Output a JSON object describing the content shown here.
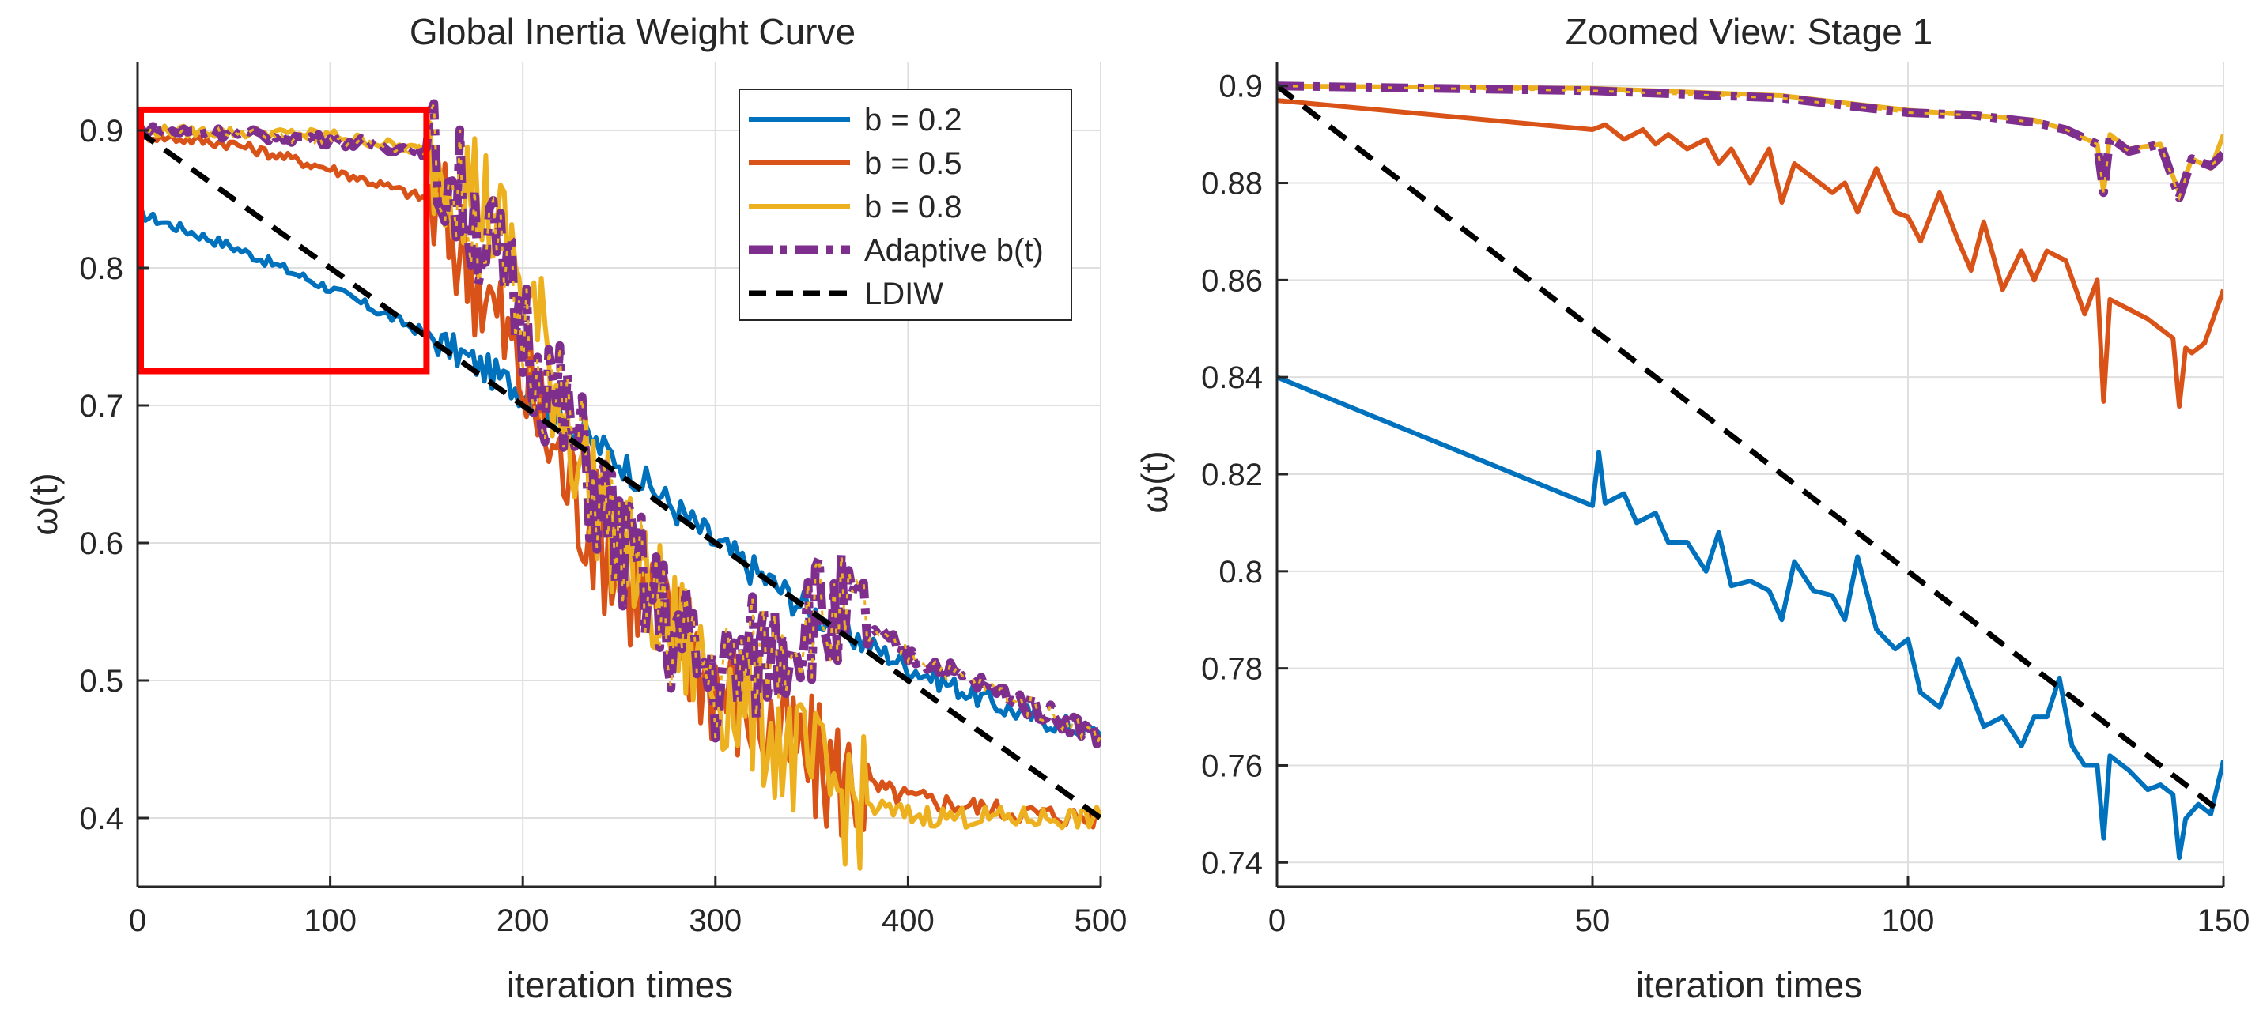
{
  "colors": {
    "b02": "#0072BD",
    "b05": "#D95319",
    "b08": "#EDB120",
    "adaptive": "#7E2F8E",
    "ldiw": "#000000",
    "highlight": "#FF0000",
    "grid": "#DFDFDF",
    "axis": "#262626"
  },
  "chart_data": [
    {
      "type": "line",
      "title": "Global Inertia Weight Curve",
      "xlabel": "iteration times",
      "ylabel": "ω(t)",
      "xlim": [
        0,
        500
      ],
      "ylim": [
        0.35,
        0.95
      ],
      "xticks": [
        0,
        100,
        200,
        300,
        400,
        500
      ],
      "xtick_labels": [
        "0",
        "100",
        "200",
        "300",
        "400",
        "500"
      ],
      "yticks": [
        0.4,
        0.5,
        0.6,
        0.7,
        0.8,
        0.9
      ],
      "ytick_labels": [
        "0.4",
        "0.5",
        "0.6",
        "0.7",
        "0.8",
        "0.9"
      ],
      "grid": true,
      "legend_position": "top-right",
      "highlight_box": {
        "x": [
          0,
          150
        ],
        "y": [
          0.725,
          0.915
        ]
      },
      "series": [
        {
          "name": "b = 0.2",
          "style": "solid",
          "color_key": "b02",
          "x": [
            0,
            50,
            100,
            150,
            200,
            250,
            300,
            350,
            400,
            450,
            500
          ],
          "y": [
            0.84,
            0.815,
            0.785,
            0.752,
            0.71,
            0.66,
            0.6,
            0.55,
            0.51,
            0.48,
            0.46
          ]
        },
        {
          "name": "b = 0.5",
          "style": "solid",
          "color_key": "b05",
          "x": [
            0,
            50,
            100,
            150,
            175,
            200,
            225,
            250,
            275,
            300,
            325,
            350,
            375,
            400,
            450,
            500
          ],
          "y": [
            0.897,
            0.89,
            0.872,
            0.85,
            0.8,
            0.72,
            0.64,
            0.58,
            0.54,
            0.5,
            0.47,
            0.44,
            0.425,
            0.415,
            0.405,
            0.4
          ]
        },
        {
          "name": "b = 0.8",
          "style": "solid",
          "color_key": "b08",
          "x": [
            0,
            100,
            150,
            175,
            200,
            225,
            250,
            275,
            300,
            325,
            350,
            375,
            400,
            450,
            500
          ],
          "y": [
            0.9,
            0.897,
            0.885,
            0.86,
            0.79,
            0.68,
            0.6,
            0.54,
            0.5,
            0.47,
            0.43,
            0.41,
            0.402,
            0.4,
            0.4
          ]
        },
        {
          "name": "Adaptive b(t)",
          "style": "dashdot",
          "color_key": "adaptive",
          "x": [
            0,
            50,
            100,
            150,
            175,
            200,
            225,
            250,
            275,
            300,
            325,
            350,
            375,
            400,
            450,
            500
          ],
          "y": [
            0.9,
            0.898,
            0.893,
            0.885,
            0.84,
            0.76,
            0.68,
            0.6,
            0.54,
            0.5,
            0.52,
            0.55,
            0.54,
            0.52,
            0.49,
            0.46
          ]
        },
        {
          "name": "LDIW",
          "style": "dashed",
          "color_key": "ldiw",
          "x": [
            0,
            500
          ],
          "y": [
            0.9,
            0.4
          ]
        }
      ]
    },
    {
      "type": "line",
      "title": "Zoomed View: Stage 1",
      "xlabel": "iteration times",
      "ylabel": "ω(t)",
      "xlim": [
        0,
        150
      ],
      "ylim": [
        0.735,
        0.905
      ],
      "xticks": [
        0,
        50,
        100,
        150
      ],
      "xtick_labels": [
        "0",
        "50",
        "100",
        "150"
      ],
      "yticks": [
        0.74,
        0.76,
        0.78,
        0.8,
        0.82,
        0.84,
        0.86,
        0.88,
        0.9
      ],
      "ytick_labels": [
        "0.74",
        "0.76",
        "0.78",
        "0.8",
        "0.82",
        "0.84",
        "0.86",
        "0.88",
        "0.9"
      ],
      "grid": true,
      "series": [
        {
          "name": "b = 0.2",
          "style": "solid",
          "color_key": "b02",
          "x": [
            0,
            50,
            51,
            52,
            55,
            57,
            60,
            62,
            65,
            68,
            70,
            72,
            75,
            78,
            80,
            82,
            85,
            88,
            90,
            92,
            95,
            98,
            100,
            102,
            105,
            108,
            110,
            112,
            115,
            118,
            120,
            122,
            124,
            126,
            128,
            130,
            131,
            132,
            135,
            138,
            140,
            142,
            143,
            144,
            146,
            148,
            150
          ],
          "y": [
            0.84,
            0.8135,
            0.8245,
            0.814,
            0.816,
            0.81,
            0.812,
            0.806,
            0.806,
            0.8,
            0.808,
            0.797,
            0.798,
            0.796,
            0.79,
            0.802,
            0.796,
            0.795,
            0.79,
            0.803,
            0.788,
            0.784,
            0.786,
            0.775,
            0.772,
            0.782,
            0.775,
            0.768,
            0.77,
            0.764,
            0.77,
            0.77,
            0.778,
            0.764,
            0.76,
            0.76,
            0.745,
            0.762,
            0.759,
            0.755,
            0.756,
            0.754,
            0.741,
            0.749,
            0.752,
            0.75,
            0.761
          ]
        },
        {
          "name": "b = 0.5",
          "style": "solid",
          "color_key": "b05",
          "x": [
            0,
            50,
            52,
            55,
            58,
            60,
            62,
            65,
            68,
            70,
            72,
            75,
            78,
            80,
            82,
            85,
            88,
            90,
            92,
            95,
            98,
            100,
            102,
            105,
            108,
            110,
            112,
            115,
            118,
            120,
            122,
            125,
            128,
            130,
            131,
            132,
            135,
            138,
            140,
            142,
            143,
            144,
            145,
            147,
            150
          ],
          "y": [
            0.897,
            0.891,
            0.892,
            0.889,
            0.891,
            0.888,
            0.89,
            0.887,
            0.889,
            0.884,
            0.887,
            0.88,
            0.887,
            0.876,
            0.884,
            0.881,
            0.878,
            0.88,
            0.874,
            0.883,
            0.874,
            0.873,
            0.868,
            0.878,
            0.868,
            0.862,
            0.872,
            0.858,
            0.866,
            0.86,
            0.866,
            0.864,
            0.853,
            0.86,
            0.835,
            0.856,
            0.854,
            0.852,
            0.85,
            0.848,
            0.834,
            0.846,
            0.845,
            0.847,
            0.858
          ]
        },
        {
          "name": "b = 0.8",
          "style": "solid",
          "color_key": "b08",
          "x": [
            0,
            50,
            80,
            100,
            110,
            120,
            125,
            130,
            131,
            132,
            135,
            140,
            143,
            145,
            148,
            150
          ],
          "y": [
            0.9,
            0.8995,
            0.898,
            0.895,
            0.894,
            0.893,
            0.891,
            0.888,
            0.878,
            0.89,
            0.887,
            0.888,
            0.878,
            0.885,
            0.883,
            0.89
          ]
        },
        {
          "name": "Adaptive b(t)",
          "style": "dashdot",
          "color_key": "adaptive",
          "x": [
            0,
            50,
            80,
            100,
            110,
            120,
            125,
            130,
            131,
            132,
            135,
            140,
            143,
            145,
            148,
            150
          ],
          "y": [
            0.9,
            0.899,
            0.8975,
            0.8945,
            0.894,
            0.8925,
            0.891,
            0.888,
            0.878,
            0.8895,
            0.8865,
            0.888,
            0.877,
            0.885,
            0.8835,
            0.886
          ]
        },
        {
          "name": "LDIW",
          "style": "dashed",
          "color_key": "ldiw",
          "x": [
            0,
            150
          ],
          "y": [
            0.9,
            0.75
          ]
        }
      ]
    }
  ]
}
